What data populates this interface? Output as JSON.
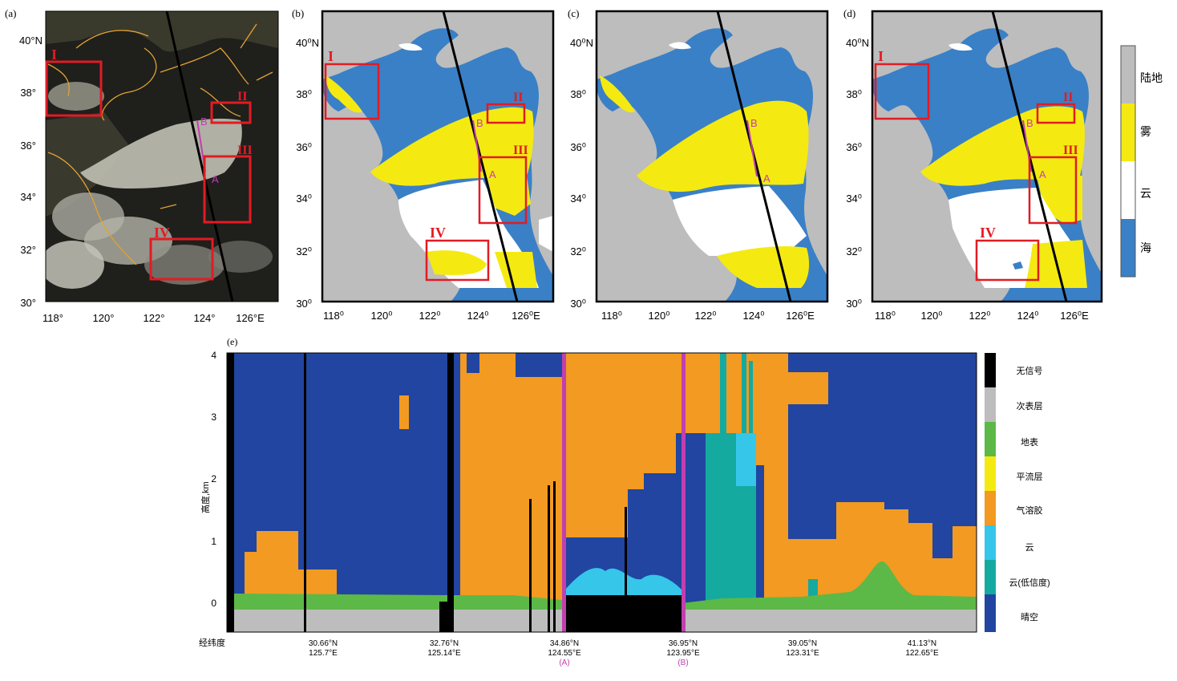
{
  "panels": {
    "a": {
      "label": "(a)"
    },
    "b": {
      "label": "(b)"
    },
    "c": {
      "label": "(c)"
    },
    "d": {
      "label": "(d)"
    },
    "e": {
      "label": "(e)"
    }
  },
  "map_axes": {
    "lat_ticks": [
      "40°N",
      "38°",
      "36°",
      "34°",
      "32°",
      "30°"
    ],
    "lon_ticks": [
      "118°",
      "120°",
      "122°",
      "124°",
      "126°E"
    ],
    "lat_ticks_b": [
      "40⁰N",
      "38⁰",
      "36⁰",
      "34⁰",
      "32⁰",
      "30⁰"
    ],
    "lon_ticks_b": [
      "118⁰",
      "120⁰",
      "122⁰",
      "124⁰",
      "126⁰E"
    ]
  },
  "regions": {
    "I": "I",
    "II": "II",
    "III": "III",
    "IV": "IV"
  },
  "points": {
    "A": "A",
    "B": "B"
  },
  "map_legend": {
    "items": [
      {
        "label": "陆地",
        "color": "#bdbdbd"
      },
      {
        "label": "雾",
        "color": "#f4ea12"
      },
      {
        "label": "云",
        "color": "#ffffff"
      },
      {
        "label": "海",
        "color": "#3a80c6"
      }
    ]
  },
  "profile": {
    "y_label": "高度,km",
    "y_ticks": [
      "4",
      "3",
      "2",
      "1",
      "0"
    ],
    "x_left_label": "经纬度",
    "x_ticks": [
      {
        "lat": "30.66°N",
        "lon": "125.7°E",
        "sub": ""
      },
      {
        "lat": "32.76°N",
        "lon": "125.14°E",
        "sub": ""
      },
      {
        "lat": "34.86°N",
        "lon": "124.55°E",
        "sub": "(A)"
      },
      {
        "lat": "36.95°N",
        "lon": "123.95°E",
        "sub": "(B)"
      },
      {
        "lat": "39.05°N",
        "lon": "123.31°E",
        "sub": ""
      },
      {
        "lat": "41.13°N",
        "lon": "122.65°E",
        "sub": ""
      }
    ],
    "legend": [
      {
        "label": "无信号",
        "color": "#000000"
      },
      {
        "label": "次表层",
        "color": "#bdbdbd"
      },
      {
        "label": "地表",
        "color": "#5cb947"
      },
      {
        "label": "平流层",
        "color": "#f4ea12"
      },
      {
        "label": "气溶胶",
        "color": "#f29a21"
      },
      {
        "label": "云",
        "color": "#35c6ea"
      },
      {
        "label": "云(低信度)",
        "color": "#15aaa0"
      },
      {
        "label": "晴空",
        "color": "#2145a0"
      }
    ]
  },
  "colors": {
    "land": "#bdbdbd",
    "fog": "#f4ea12",
    "cloud": "#ffffff",
    "sea": "#3a80c6",
    "box": "#e21b23",
    "track": "#c23fb0",
    "clear": "#2145a0",
    "aerosol": "#f29a21",
    "surface": "#5cb947",
    "subsurface": "#bdbdbd",
    "cloud_low": "#15aaa0",
    "cloud_high": "#35c6ea",
    "nosignal": "#000000"
  }
}
